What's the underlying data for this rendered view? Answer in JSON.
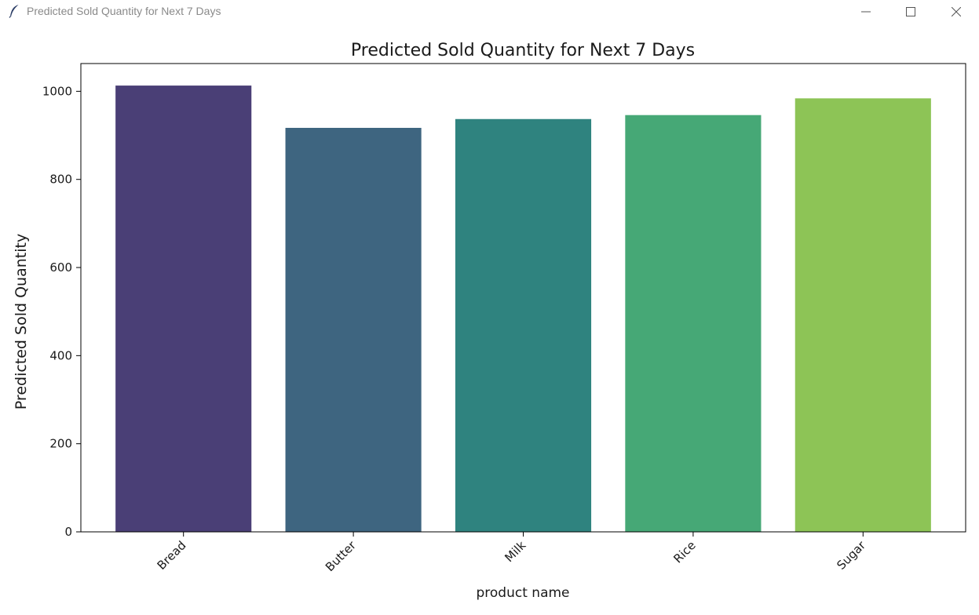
{
  "window": {
    "title": "Predicted Sold Quantity for Next 7 Days",
    "icon": "feather-icon",
    "controls": [
      "minimize-icon",
      "maximize-icon",
      "close-icon"
    ]
  },
  "chart_data": {
    "type": "bar",
    "title": "Predicted Sold Quantity for Next 7 Days",
    "xlabel": "product name",
    "ylabel": "Predicted Sold Quantity",
    "categories": [
      "Bread",
      "Butter",
      "Milk",
      "Rice",
      "Sugar"
    ],
    "values": [
      1013,
      917,
      937,
      946,
      984
    ],
    "colors": [
      "#4a3f76",
      "#3e6580",
      "#2f837f",
      "#46a876",
      "#8dc456"
    ],
    "ylim": [
      0,
      1063
    ],
    "yticks": [
      "0",
      "200",
      "400",
      "600",
      "800",
      "1000"
    ],
    "ytick_values": [
      0,
      200,
      400,
      600,
      800,
      1000
    ],
    "grid": false,
    "legend": "none"
  }
}
